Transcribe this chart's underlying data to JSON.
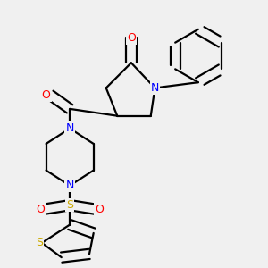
{
  "bg_color": "#f0f0f0",
  "bond_color": "#000000",
  "atom_colors": {
    "N": "#0000ff",
    "O": "#ff0000",
    "S": "#ccaa00",
    "C": "#000000"
  },
  "line_width": 1.6,
  "dbo": 0.018
}
